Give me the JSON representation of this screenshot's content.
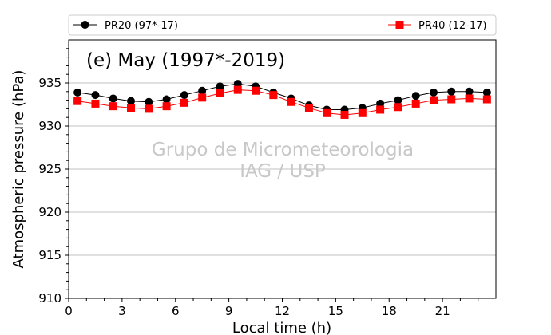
{
  "chart_data": {
    "type": "line",
    "title": "(e) May (1997*-2019)",
    "xlabel": "Local time (h)",
    "ylabel": "Atmospheric pressure (hPa)",
    "xlim": [
      0,
      24
    ],
    "ylim": [
      910,
      940
    ],
    "xticks": [
      0,
      3,
      6,
      9,
      12,
      15,
      18,
      21
    ],
    "yticks": [
      910,
      915,
      920,
      925,
      930,
      935
    ],
    "grid": "horizontal",
    "legend_placement": "top, above plot",
    "watermark": [
      "Grupo de Micrometeorologia",
      "IAG / USP"
    ],
    "x": [
      0.5,
      1.5,
      2.5,
      3.5,
      4.5,
      5.5,
      6.5,
      7.5,
      8.5,
      9.5,
      10.5,
      11.5,
      12.5,
      13.5,
      14.5,
      15.5,
      16.5,
      17.5,
      18.5,
      19.5,
      20.5,
      21.5,
      22.5,
      23.5
    ],
    "series": [
      {
        "name": "PR20 (97*-17)",
        "color": "#000000",
        "marker": "circle",
        "values": [
          933.9,
          933.6,
          933.2,
          932.9,
          932.8,
          933.1,
          933.6,
          934.1,
          934.6,
          934.9,
          934.6,
          933.9,
          933.2,
          932.4,
          931.9,
          931.9,
          932.1,
          932.6,
          933.0,
          933.5,
          933.9,
          934.0,
          934.0,
          933.9
        ]
      },
      {
        "name": "PR40 (12-17)",
        "color": "#ff0000",
        "marker": "square",
        "values": [
          932.9,
          932.6,
          932.3,
          932.1,
          932.0,
          932.3,
          932.7,
          933.3,
          933.8,
          934.2,
          934.1,
          933.6,
          932.8,
          932.1,
          931.5,
          931.3,
          931.5,
          931.9,
          932.2,
          932.6,
          933.0,
          933.1,
          933.2,
          933.1
        ]
      }
    ]
  }
}
